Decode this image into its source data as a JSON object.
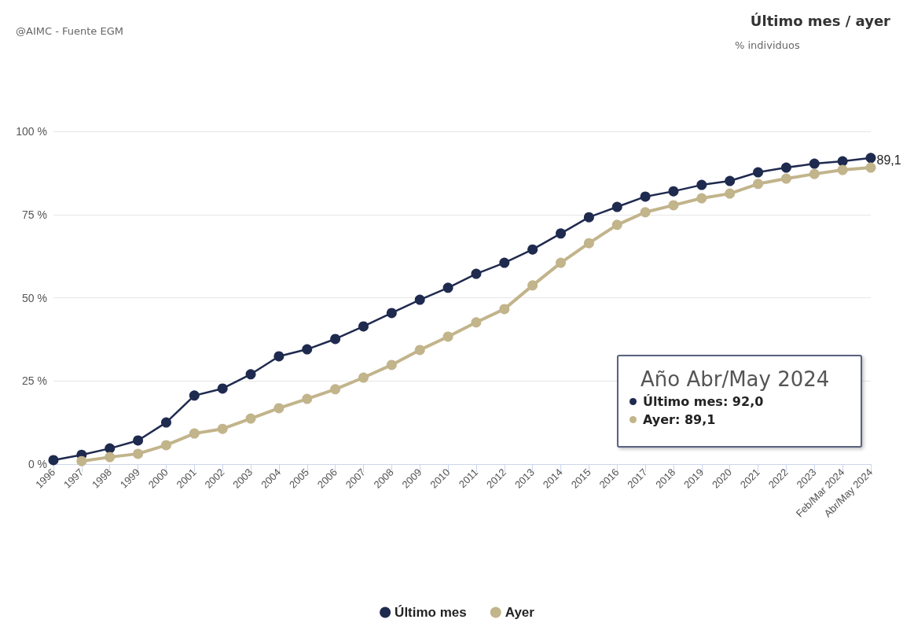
{
  "chart_data": {
    "type": "line",
    "title": "Último mes / ayer",
    "subtitle": "% individuos",
    "annotations": [
      "@AIMC - Fuente EGM",
      "Año Abr/May 2024",
      "Último mes: 92,0",
      "Ayer: 89,1"
    ],
    "categories": [
      "1996",
      "1997",
      "1998",
      "1999",
      "2000",
      "2001",
      "2002",
      "2003",
      "2004",
      "2005",
      "2006",
      "2007",
      "2008",
      "2009",
      "2010",
      "2011",
      "2012",
      "2013",
      "2014",
      "2015",
      "2016",
      "2017",
      "2018",
      "2019",
      "2020",
      "2021",
      "2022",
      "2023",
      "Feb/Mar 2024",
      "Abr/May 2024"
    ],
    "series": [
      {
        "name": "Último mes",
        "color": "#1f2a4f",
        "values": [
          1.2,
          2.8,
          4.7,
          7.1,
          12.5,
          20.6,
          22.7,
          27.0,
          32.4,
          34.5,
          37.6,
          41.4,
          45.4,
          49.4,
          53.0,
          57.2,
          60.5,
          64.5,
          69.3,
          74.2,
          77.3,
          80.4,
          82.0,
          83.9,
          85.1,
          87.7,
          89.1,
          90.3,
          91.0,
          92.0
        ]
      },
      {
        "name": "Ayer",
        "color": "#c2b48b",
        "values": [
          null,
          0.9,
          2.1,
          3.1,
          5.7,
          9.2,
          10.6,
          13.7,
          16.8,
          19.6,
          22.5,
          26.0,
          29.8,
          34.3,
          38.3,
          42.6,
          46.6,
          53.7,
          60.5,
          66.4,
          71.9,
          75.7,
          77.8,
          79.9,
          81.3,
          84.2,
          85.8,
          87.2,
          88.4,
          89.1
        ],
        "value_labels": [
          null,
          null,
          null,
          null,
          null,
          null,
          null,
          null,
          null,
          null,
          null,
          null,
          null,
          null,
          null,
          null,
          null,
          null,
          null,
          null,
          null,
          null,
          null,
          null,
          null,
          null,
          null,
          null,
          null,
          "89,1"
        ]
      }
    ],
    "ylim": [
      0,
      100
    ],
    "yticks": [
      {
        "value": 0,
        "label": "0 %"
      },
      {
        "value": 25,
        "label": "25 %"
      },
      {
        "value": 50,
        "label": "50 %"
      },
      {
        "value": 75,
        "label": "75 %"
      },
      {
        "value": 100,
        "label": "100 %"
      }
    ],
    "grid": "y",
    "legend": "bottom",
    "marker": "circle",
    "line_style": "solid"
  }
}
